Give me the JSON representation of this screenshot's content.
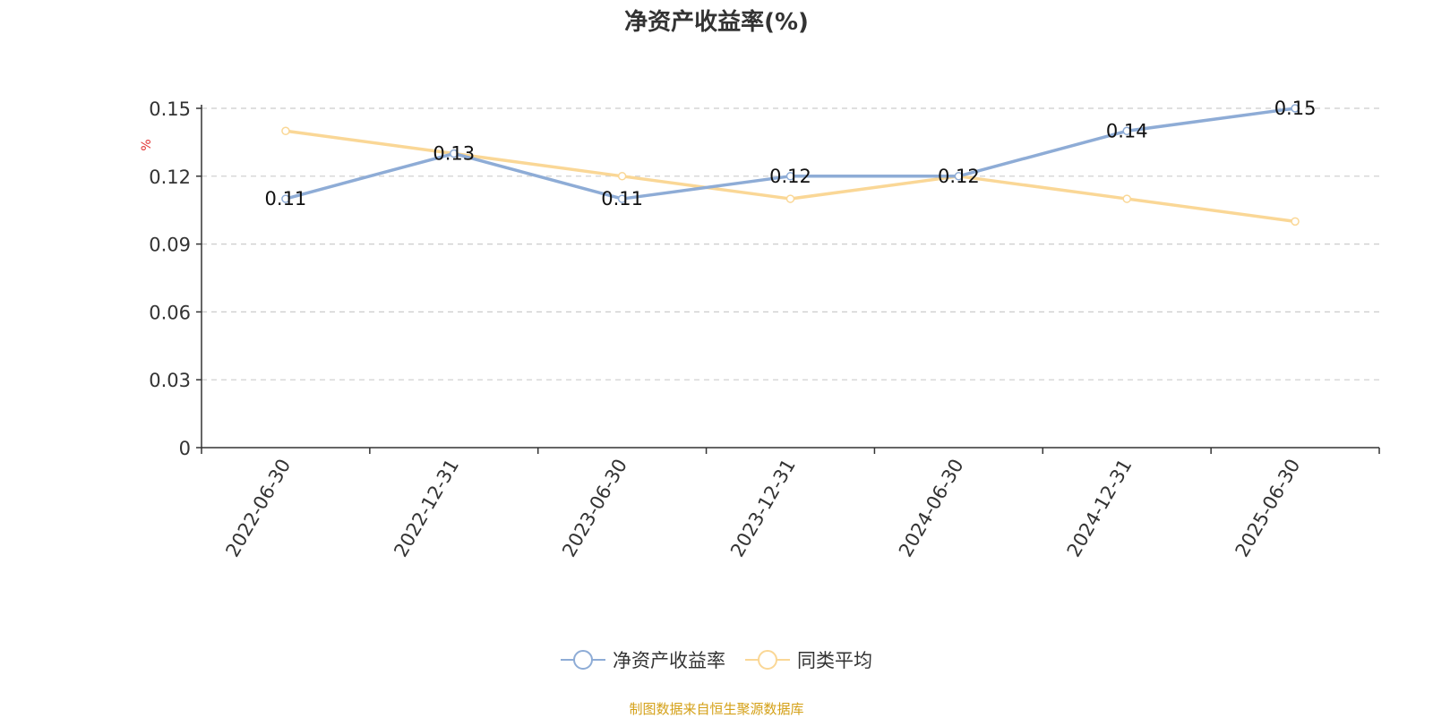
{
  "chart_data": {
    "type": "line",
    "title": "净资产收益率(%)",
    "ylabel": "%",
    "categories": [
      "2022-06-30",
      "2022-12-31",
      "2023-06-30",
      "2023-12-31",
      "2024-06-30",
      "2024-12-31",
      "2025-06-30"
    ],
    "y_ticks": [
      "0",
      "0.03",
      "0.06",
      "0.09",
      "0.12",
      "0.15"
    ],
    "ylim": [
      0,
      0.15
    ],
    "grid": true,
    "legend_position": "bottom",
    "series": [
      {
        "name": "净资产收益率",
        "values": [
          0.11,
          0.13,
          0.11,
          0.12,
          0.12,
          0.14,
          0.15
        ],
        "color": "#8eacd6",
        "show_labels": true
      },
      {
        "name": "同类平均",
        "values": [
          0.14,
          0.13,
          0.12,
          0.11,
          0.12,
          0.11,
          0.1
        ],
        "color": "#fad796",
        "show_labels": false
      }
    ]
  },
  "source_note": "制图数据来自恒生聚源数据库"
}
